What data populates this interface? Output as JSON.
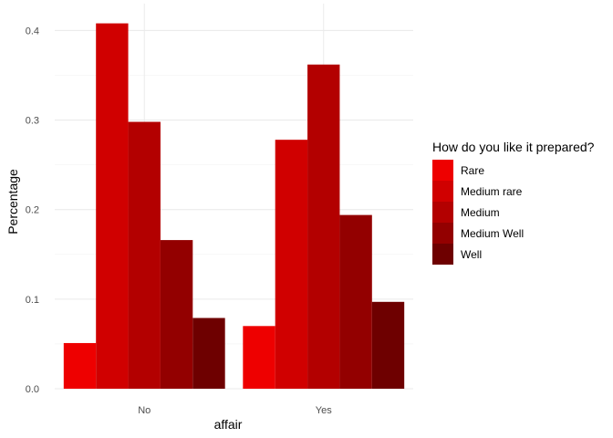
{
  "chart_data": {
    "type": "bar",
    "categories": [
      "No",
      "Yes"
    ],
    "xlabel": "affair",
    "ylabel": "Percentage",
    "ylim": [
      0,
      0.43
    ],
    "yticks": [
      "0.0",
      "0.1",
      "0.2",
      "0.3",
      "0.4"
    ],
    "grid": true,
    "legend": {
      "title": "How do you like it prepared?",
      "placement": "right"
    },
    "series": [
      {
        "name": "Rare",
        "color": "#ee0000",
        "values": [
          0.051,
          0.07
        ]
      },
      {
        "name": "Medium rare",
        "color": "#d00000",
        "values": [
          0.408,
          0.278
        ]
      },
      {
        "name": "Medium",
        "color": "#b30000",
        "values": [
          0.298,
          0.362
        ]
      },
      {
        "name": "Medium Well",
        "color": "#930000",
        "values": [
          0.166,
          0.194
        ]
      },
      {
        "name": "Well",
        "color": "#6e0000",
        "values": [
          0.079,
          0.097
        ]
      }
    ]
  }
}
